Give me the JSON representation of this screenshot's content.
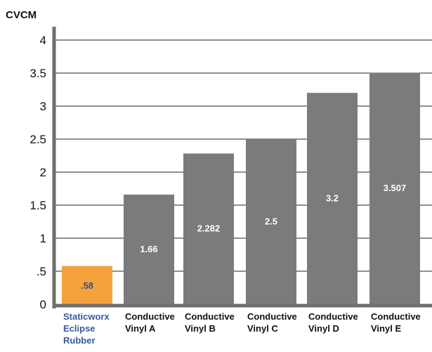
{
  "chart_data": {
    "type": "bar",
    "title": "",
    "xlabel": "",
    "ylabel": "CVCM",
    "ylim": [
      0,
      4
    ],
    "yticks": [
      {
        "value": 0,
        "label": "0"
      },
      {
        "value": 0.5,
        "label": ".5"
      },
      {
        "value": 1,
        "label": "1"
      },
      {
        "value": 1.5,
        "label": "1.5"
      },
      {
        "value": 2,
        "label": "2"
      },
      {
        "value": 2.5,
        "label": "2.5"
      },
      {
        "value": 3,
        "label": "3"
      },
      {
        "value": 3.5,
        "label": "3.5"
      },
      {
        "value": 4,
        "label": "4"
      }
    ],
    "grid": true,
    "categories": [
      [
        "Staticworx",
        "Eclipse",
        "Rubber"
      ],
      [
        "Conductive",
        "Vinyl A"
      ],
      [
        "Conductive",
        "Vinyl B"
      ],
      [
        "Conductive",
        "Vinyl C"
      ],
      [
        "Conductive",
        "Vinyl D"
      ],
      [
        "Conductive",
        "Vinyl E"
      ]
    ],
    "values": [
      0.58,
      1.66,
      2.282,
      2.5,
      3.2,
      3.507
    ],
    "value_labels": [
      ".58",
      "1.66",
      "2.282",
      "2.5",
      "3.2",
      "3.507"
    ],
    "colors": {
      "highlight_bar": "#f5a23c",
      "bar": "#7b7b7e",
      "highlight_label": "#3a5a9c",
      "label": "#111111",
      "highlight_value": "#2f4f8f",
      "value": "#ffffff",
      "axis": "#6e6e6e",
      "grid": "#222222"
    },
    "highlight_index": 0
  }
}
